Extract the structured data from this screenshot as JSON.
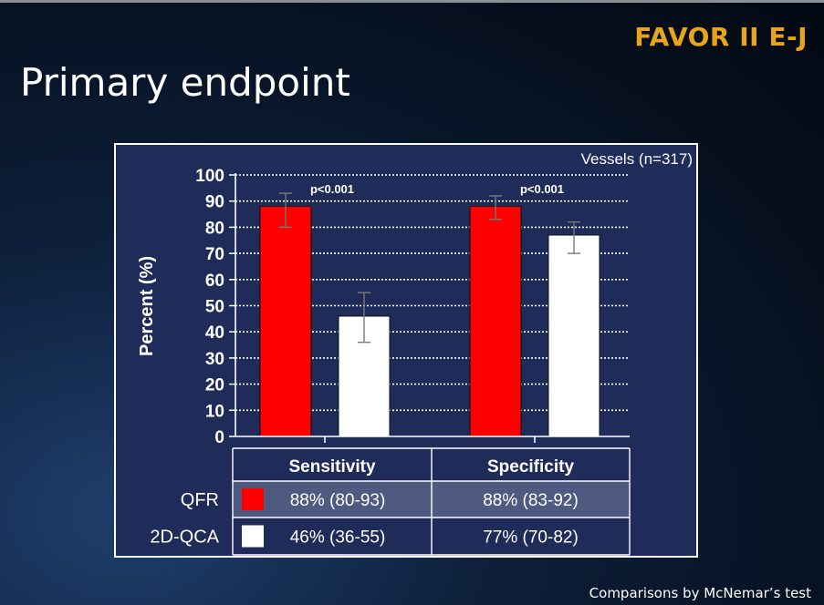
{
  "header": {
    "brand": "FAVOR II E-J",
    "title": "Primary endpoint"
  },
  "footer": {
    "note": "Comparisons by McNemar’s test"
  },
  "chart_data": {
    "type": "bar",
    "annotation": "Vessels (n=317)",
    "ylabel": "Percent (%)",
    "ylim": [
      0,
      100
    ],
    "yticks": [
      "0",
      "10",
      "20",
      "30",
      "40",
      "50",
      "60",
      "70",
      "80",
      "90",
      "100"
    ],
    "grid": true,
    "categories": [
      "Sensitivity",
      "Specificity"
    ],
    "series": [
      {
        "name": "QFR",
        "color": "#ff0000",
        "values": [
          88,
          88
        ],
        "ci_low": [
          80,
          83
        ],
        "ci_high": [
          93,
          92
        ]
      },
      {
        "name": "2D-QCA",
        "color": "#ffffff",
        "values": [
          46,
          77
        ],
        "ci_low": [
          36,
          70
        ],
        "ci_high": [
          55,
          82
        ]
      }
    ],
    "pvalues": [
      "p<0.001",
      "p<0.001"
    ],
    "table": {
      "rows": [
        {
          "label": "QFR",
          "cells": [
            "88% (80-93)",
            "88% (83-92)"
          ]
        },
        {
          "label": "2D-QCA",
          "cells": [
            "46% (36-55)",
            "77% (70-82)"
          ]
        }
      ]
    }
  }
}
